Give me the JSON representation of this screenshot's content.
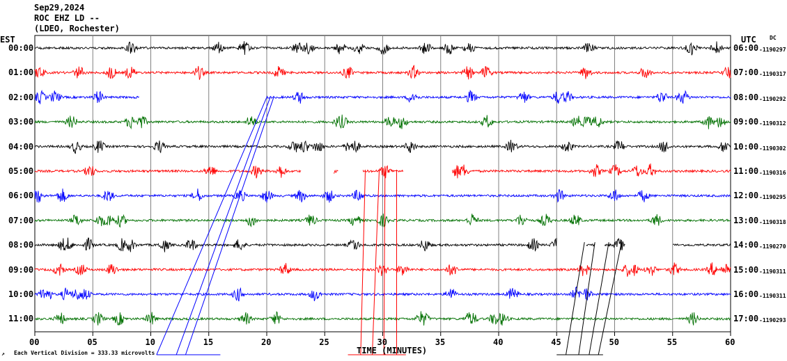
{
  "header": {
    "date": "Sep29,2024",
    "station": "ROC EHZ LD --",
    "network": "(LDEO, Rochester)"
  },
  "left_axis_label": "EST",
  "right_axis_label": "UTC",
  "dc_label": "DC",
  "footer": {
    "icon_glyph": "↗",
    "scale_text": "Each Vertical Division =  333.33 microvolts"
  },
  "chart_data": {
    "type": "line",
    "title": "",
    "xlabel": "TIME (MINUTES)",
    "xlim": [
      0,
      60
    ],
    "x_ticks": [
      "00",
      "05",
      "10",
      "15",
      "20",
      "25",
      "30",
      "35",
      "40",
      "45",
      "50",
      "55",
      "60"
    ],
    "grid": "vertical lines every 5 minutes",
    "rows": [
      {
        "est": "00:00",
        "utc": "06:00",
        "dc": "-1190297",
        "color": "#000000"
      },
      {
        "est": "01:00",
        "utc": "07:00",
        "dc": "-1190317",
        "color": "#ff0000"
      },
      {
        "est": "02:00",
        "utc": "08:00",
        "dc": "-1190292",
        "color": "#0000ff"
      },
      {
        "est": "03:00",
        "utc": "09:00",
        "dc": "-1190312",
        "color": "#007000"
      },
      {
        "est": "04:00",
        "utc": "10:00",
        "dc": "-1190302",
        "color": "#000000"
      },
      {
        "est": "05:00",
        "utc": "11:00",
        "dc": "-1190316",
        "color": "#ff0000"
      },
      {
        "est": "06:00",
        "utc": "12:00",
        "dc": "-1190295",
        "color": "#0000ff"
      },
      {
        "est": "07:00",
        "utc": "13:00",
        "dc": "-1190318",
        "color": "#007000"
      },
      {
        "est": "08:00",
        "utc": "14:00",
        "dc": "-1190270",
        "color": "#000000"
      },
      {
        "est": "09:00",
        "utc": "15:00",
        "dc": "-1190311",
        "color": "#ff0000"
      },
      {
        "est": "10:00",
        "utc": "16:00",
        "dc": "-1190311",
        "color": "#0000ff"
      },
      {
        "est": "11:00",
        "utc": "17:00",
        "dc": "-1190293",
        "color": "#007000"
      }
    ],
    "data_gaps_minutes": [
      {
        "row": 2,
        "from": 9.0,
        "to": 20.0
      },
      {
        "row": 5,
        "from": 23.0,
        "to": 25.8
      },
      {
        "row": 5,
        "from": 26.2,
        "to": 28.3
      },
      {
        "row": 5,
        "from": 31.8,
        "to": 36.0
      },
      {
        "row": 8,
        "from": 45.0,
        "to": 47.5
      },
      {
        "row": 8,
        "from": 48.3,
        "to": 49.1
      },
      {
        "row": 8,
        "from": 50.9,
        "to": 55.0
      }
    ],
    "event_colors": [
      "#0000ff",
      "#ff0000",
      "#000000"
    ]
  }
}
